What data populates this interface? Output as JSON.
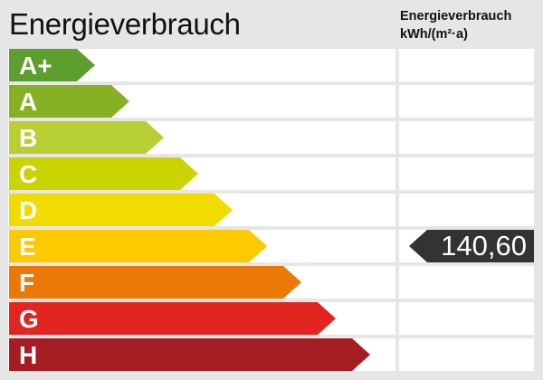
{
  "header": {
    "title": "Energieverbrauch",
    "unit_line1": "Energieverbrauch",
    "unit_line2": "kWh/(m²·a)"
  },
  "classes": [
    {
      "label": "A+",
      "color": "#5e9e2e"
    },
    {
      "label": "A",
      "color": "#87b124"
    },
    {
      "label": "B",
      "color": "#b8cf34"
    },
    {
      "label": "C",
      "color": "#cad400"
    },
    {
      "label": "D",
      "color": "#f0dc00"
    },
    {
      "label": "E",
      "color": "#fdc900"
    },
    {
      "label": "F",
      "color": "#ec7808"
    },
    {
      "label": "G",
      "color": "#e32521"
    },
    {
      "label": "H",
      "color": "#a51c22"
    }
  ],
  "indicator": {
    "value": "140,60",
    "class": "E",
    "color": "#333333"
  }
}
